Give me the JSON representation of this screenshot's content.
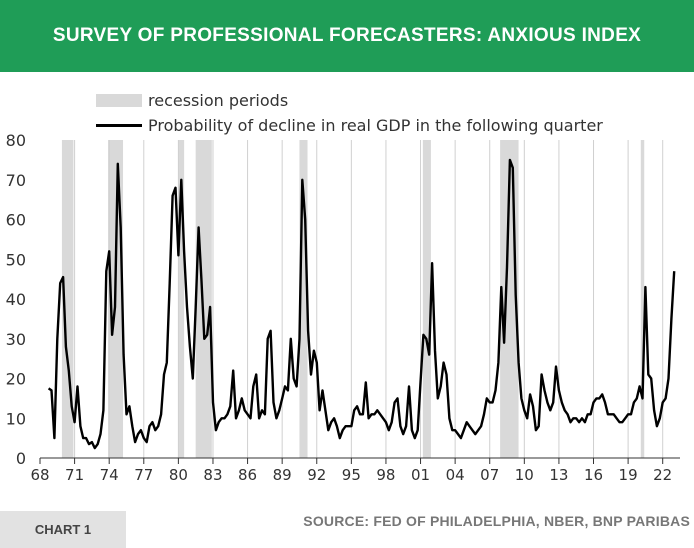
{
  "header": {
    "title": "SURVEY OF PROFESSIONAL FORECASTERS: ANXIOUS INDEX"
  },
  "legend": {
    "recession_label": "recession periods",
    "line_label": "Probability of decline in real GDP in the following quarter"
  },
  "footer": {
    "chart_label": "CHART 1",
    "source": "SOURCE: FED OF PHILADELPHIA, NBER, BNP PARIBAS"
  },
  "colors": {
    "banner": "#1f9d57",
    "recession": "#d9d9d9",
    "line": "#000000",
    "grid": "#d0d0d0"
  },
  "chart_data": {
    "type": "line",
    "title": "SURVEY OF PROFESSIONAL FORECASTERS: ANXIOUS INDEX",
    "xlabel": "",
    "ylabel": "",
    "xlim": [
      1968,
      2023.5
    ],
    "ylim": [
      0,
      80
    ],
    "y_ticks": [
      0,
      10,
      20,
      30,
      40,
      50,
      60,
      70,
      80
    ],
    "x_ticks": [
      1968,
      1971,
      1974,
      1977,
      1980,
      1983,
      1986,
      1989,
      1992,
      1995,
      1998,
      2001,
      2004,
      2007,
      2010,
      2013,
      2016,
      2019,
      2022
    ],
    "x_tick_labels": [
      "68",
      "71",
      "74",
      "77",
      "80",
      "83",
      "86",
      "89",
      "92",
      "95",
      "98",
      "01",
      "04",
      "07",
      "10",
      "13",
      "16",
      "19",
      "22"
    ],
    "grid": true,
    "legend_position": "top-left",
    "recessions": [
      [
        1969.9,
        1970.9
      ],
      [
        1973.9,
        1975.2
      ],
      [
        1980.0,
        1980.5
      ],
      [
        1981.5,
        1982.9
      ],
      [
        1990.5,
        1991.2
      ],
      [
        2001.2,
        2001.9
      ],
      [
        2007.9,
        2009.5
      ],
      [
        2020.1,
        2020.4
      ]
    ],
    "series": [
      {
        "name": "Probability of decline in real GDP in the following quarter",
        "points": [
          [
            1968.75,
            17.5
          ],
          [
            1969.0,
            17.0
          ],
          [
            1969.25,
            5.0
          ],
          [
            1969.5,
            30.0
          ],
          [
            1969.75,
            44.0
          ],
          [
            1970.0,
            45.5
          ],
          [
            1970.25,
            28.0
          ],
          [
            1970.5,
            22.0
          ],
          [
            1970.75,
            13.0
          ],
          [
            1971.0,
            9.0
          ],
          [
            1971.25,
            18.0
          ],
          [
            1971.5,
            8.0
          ],
          [
            1971.75,
            5.0
          ],
          [
            1972.0,
            5.0
          ],
          [
            1972.25,
            3.5
          ],
          [
            1972.5,
            4.0
          ],
          [
            1972.75,
            2.5
          ],
          [
            1973.0,
            3.5
          ],
          [
            1973.25,
            6.0
          ],
          [
            1973.5,
            12.0
          ],
          [
            1973.75,
            47.0
          ],
          [
            1974.0,
            52.0
          ],
          [
            1974.25,
            31.0
          ],
          [
            1974.5,
            38.0
          ],
          [
            1974.75,
            74.0
          ],
          [
            1975.0,
            58.0
          ],
          [
            1975.25,
            26.0
          ],
          [
            1975.5,
            11.0
          ],
          [
            1975.75,
            13.0
          ],
          [
            1976.0,
            8.0
          ],
          [
            1976.25,
            4.0
          ],
          [
            1976.5,
            6.0
          ],
          [
            1976.75,
            7.0
          ],
          [
            1977.0,
            5.0
          ],
          [
            1977.25,
            4.0
          ],
          [
            1977.5,
            8.0
          ],
          [
            1977.75,
            9.0
          ],
          [
            1978.0,
            7.0
          ],
          [
            1978.25,
            8.0
          ],
          [
            1978.5,
            11.0
          ],
          [
            1978.75,
            21.0
          ],
          [
            1979.0,
            24.0
          ],
          [
            1979.25,
            44.0
          ],
          [
            1979.5,
            66.0
          ],
          [
            1979.75,
            68.0
          ],
          [
            1980.0,
            51.0
          ],
          [
            1980.25,
            70.0
          ],
          [
            1980.5,
            52.0
          ],
          [
            1980.75,
            38.0
          ],
          [
            1981.0,
            28.0
          ],
          [
            1981.25,
            20.0
          ],
          [
            1981.5,
            38.0
          ],
          [
            1981.75,
            58.0
          ],
          [
            1982.0,
            45.0
          ],
          [
            1982.25,
            30.0
          ],
          [
            1982.5,
            31.0
          ],
          [
            1982.75,
            38.0
          ],
          [
            1983.0,
            14.0
          ],
          [
            1983.25,
            7.0
          ],
          [
            1983.5,
            9.0
          ],
          [
            1983.75,
            10.0
          ],
          [
            1984.0,
            10.0
          ],
          [
            1984.25,
            11.0
          ],
          [
            1984.5,
            13.0
          ],
          [
            1984.75,
            22.0
          ],
          [
            1985.0,
            10.0
          ],
          [
            1985.25,
            12.0
          ],
          [
            1985.5,
            15.0
          ],
          [
            1985.75,
            12.0
          ],
          [
            1986.0,
            11.0
          ],
          [
            1986.25,
            10.0
          ],
          [
            1986.5,
            18.0
          ],
          [
            1986.75,
            21.0
          ],
          [
            1987.0,
            10.0
          ],
          [
            1987.25,
            12.0
          ],
          [
            1987.5,
            11.0
          ],
          [
            1987.75,
            30.0
          ],
          [
            1988.0,
            32.0
          ],
          [
            1988.25,
            14.0
          ],
          [
            1988.5,
            10.0
          ],
          [
            1988.75,
            12.0
          ],
          [
            1989.0,
            15.0
          ],
          [
            1989.25,
            18.0
          ],
          [
            1989.5,
            17.0
          ],
          [
            1989.75,
            30.0
          ],
          [
            1990.0,
            20.0
          ],
          [
            1990.25,
            18.0
          ],
          [
            1990.5,
            30.0
          ],
          [
            1990.75,
            70.0
          ],
          [
            1991.0,
            60.0
          ],
          [
            1991.25,
            32.0
          ],
          [
            1991.5,
            21.0
          ],
          [
            1991.75,
            27.0
          ],
          [
            1992.0,
            24.0
          ],
          [
            1992.25,
            12.0
          ],
          [
            1992.5,
            17.0
          ],
          [
            1992.75,
            12.0
          ],
          [
            1993.0,
            7.0
          ],
          [
            1993.25,
            9.0
          ],
          [
            1993.5,
            10.0
          ],
          [
            1993.75,
            8.0
          ],
          [
            1994.0,
            5.0
          ],
          [
            1994.25,
            7.0
          ],
          [
            1994.5,
            8.0
          ],
          [
            1994.75,
            8.0
          ],
          [
            1995.0,
            8.0
          ],
          [
            1995.25,
            12.0
          ],
          [
            1995.5,
            13.0
          ],
          [
            1995.75,
            11.0
          ],
          [
            1996.0,
            11.0
          ],
          [
            1996.25,
            19.0
          ],
          [
            1996.5,
            10.0
          ],
          [
            1996.75,
            11.0
          ],
          [
            1997.0,
            11.0
          ],
          [
            1997.25,
            12.0
          ],
          [
            1997.5,
            11.0
          ],
          [
            1997.75,
            10.0
          ],
          [
            1998.0,
            9.0
          ],
          [
            1998.25,
            7.0
          ],
          [
            1998.5,
            9.0
          ],
          [
            1998.75,
            14.0
          ],
          [
            1999.0,
            15.0
          ],
          [
            1999.25,
            8.0
          ],
          [
            1999.5,
            6.0
          ],
          [
            1999.75,
            8.0
          ],
          [
            2000.0,
            18.0
          ],
          [
            2000.25,
            7.0
          ],
          [
            2000.5,
            5.0
          ],
          [
            2000.75,
            7.0
          ],
          [
            2001.0,
            19.0
          ],
          [
            2001.25,
            31.0
          ],
          [
            2001.5,
            30.0
          ],
          [
            2001.75,
            26.0
          ],
          [
            2002.0,
            49.0
          ],
          [
            2002.25,
            27.0
          ],
          [
            2002.5,
            15.0
          ],
          [
            2002.75,
            18.0
          ],
          [
            2003.0,
            24.0
          ],
          [
            2003.25,
            21.0
          ],
          [
            2003.5,
            10.0
          ],
          [
            2003.75,
            7.0
          ],
          [
            2004.0,
            7.0
          ],
          [
            2004.25,
            6.0
          ],
          [
            2004.5,
            5.0
          ],
          [
            2004.75,
            7.0
          ],
          [
            2005.0,
            9.0
          ],
          [
            2005.25,
            8.0
          ],
          [
            2005.5,
            7.0
          ],
          [
            2005.75,
            6.0
          ],
          [
            2006.0,
            7.0
          ],
          [
            2006.25,
            8.0
          ],
          [
            2006.5,
            11.0
          ],
          [
            2006.75,
            15.0
          ],
          [
            2007.0,
            14.0
          ],
          [
            2007.25,
            14.0
          ],
          [
            2007.5,
            17.0
          ],
          [
            2007.75,
            24.0
          ],
          [
            2008.0,
            43.0
          ],
          [
            2008.25,
            29.0
          ],
          [
            2008.5,
            48.0
          ],
          [
            2008.75,
            75.0
          ],
          [
            2009.0,
            73.0
          ],
          [
            2009.25,
            41.0
          ],
          [
            2009.5,
            24.0
          ],
          [
            2009.75,
            15.0
          ],
          [
            2010.0,
            12.0
          ],
          [
            2010.25,
            10.0
          ],
          [
            2010.5,
            16.0
          ],
          [
            2010.75,
            13.0
          ],
          [
            2011.0,
            7.0
          ],
          [
            2011.25,
            8.0
          ],
          [
            2011.5,
            21.0
          ],
          [
            2011.75,
            17.0
          ],
          [
            2012.0,
            14.0
          ],
          [
            2012.25,
            12.0
          ],
          [
            2012.5,
            14.0
          ],
          [
            2012.75,
            23.0
          ],
          [
            2013.0,
            17.0
          ],
          [
            2013.25,
            14.0
          ],
          [
            2013.5,
            12.0
          ],
          [
            2013.75,
            11.0
          ],
          [
            2014.0,
            9.0
          ],
          [
            2014.25,
            10.0
          ],
          [
            2014.5,
            10.0
          ],
          [
            2014.75,
            9.0
          ],
          [
            2015.0,
            10.0
          ],
          [
            2015.25,
            9.0
          ],
          [
            2015.5,
            11.0
          ],
          [
            2015.75,
            11.0
          ],
          [
            2016.0,
            14.0
          ],
          [
            2016.25,
            15.0
          ],
          [
            2016.5,
            15.0
          ],
          [
            2016.75,
            16.0
          ],
          [
            2017.0,
            14.0
          ],
          [
            2017.25,
            11.0
          ],
          [
            2017.5,
            11.0
          ],
          [
            2017.75,
            11.0
          ],
          [
            2018.0,
            10.0
          ],
          [
            2018.25,
            9.0
          ],
          [
            2018.5,
            9.0
          ],
          [
            2018.75,
            10.0
          ],
          [
            2019.0,
            11.0
          ],
          [
            2019.25,
            11.0
          ],
          [
            2019.5,
            14.0
          ],
          [
            2019.75,
            15.0
          ],
          [
            2020.0,
            18.0
          ],
          [
            2020.25,
            15.0
          ],
          [
            2020.5,
            43.0
          ],
          [
            2020.75,
            21.0
          ],
          [
            2021.0,
            20.0
          ],
          [
            2021.25,
            12.0
          ],
          [
            2021.5,
            8.0
          ],
          [
            2021.75,
            10.0
          ],
          [
            2022.0,
            14.0
          ],
          [
            2022.25,
            15.0
          ],
          [
            2022.5,
            20.0
          ],
          [
            2022.75,
            35.0
          ],
          [
            2023.0,
            47.0
          ]
        ]
      }
    ]
  }
}
